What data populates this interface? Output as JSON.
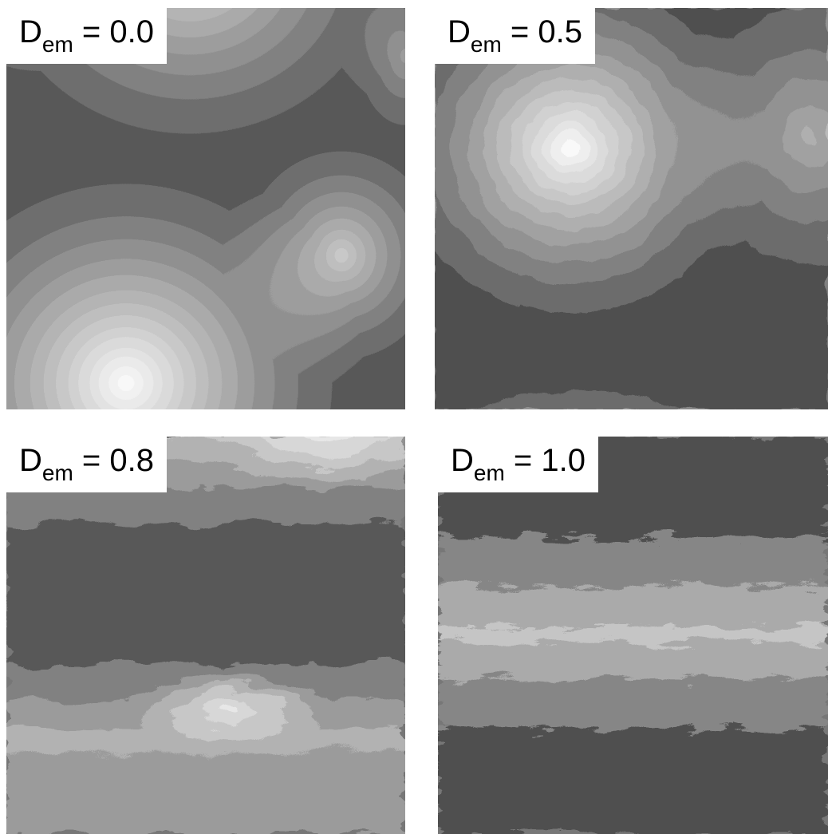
{
  "panels": [
    {
      "symbol": "D",
      "subscript": "em",
      "value": "= 0.0"
    },
    {
      "symbol": "D",
      "subscript": "em",
      "value": "= 0.5"
    },
    {
      "symbol": "D",
      "subscript": "em",
      "value": "= 0.8"
    },
    {
      "symbol": "D",
      "subscript": "em",
      "value": "= 1.0"
    }
  ]
}
